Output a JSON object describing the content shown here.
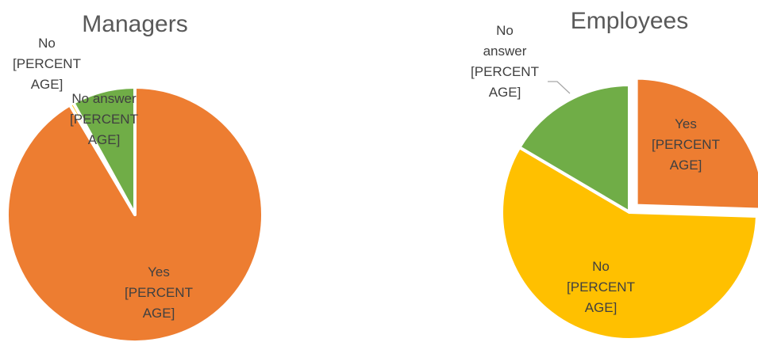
{
  "chart_data": [
    {
      "type": "pie",
      "title": "Managers",
      "slices": [
        {
          "name": "Yes",
          "value": 91.5,
          "color": "#ED7D31",
          "label_lines": [
            "Yes",
            "[PERCENT",
            "AGE]"
          ]
        },
        {
          "name": "No",
          "value": 0.5,
          "color": "#FFC000",
          "label_lines": [
            "No",
            "[PERCENT",
            "AGE]"
          ]
        },
        {
          "name": "No answer",
          "value": 8.0,
          "color": "#70AD47",
          "label_lines": [
            "No answer",
            "[PERCENT",
            "AGE]"
          ]
        }
      ]
    },
    {
      "type": "pie",
      "title": "Employees",
      "slices": [
        {
          "name": "Yes",
          "value": 25.5,
          "color": "#ED7D31",
          "label_lines": [
            "Yes",
            "[PERCENT",
            "AGE]"
          ]
        },
        {
          "name": "No",
          "value": 58.0,
          "color": "#FFC000",
          "label_lines": [
            "No",
            "[PERCENT",
            "AGE]"
          ]
        },
        {
          "name": "No answer",
          "value": 16.5,
          "color": "#70AD47",
          "label_lines": [
            "No",
            "answer",
            "[PERCENT",
            "AGE]"
          ]
        }
      ]
    }
  ]
}
